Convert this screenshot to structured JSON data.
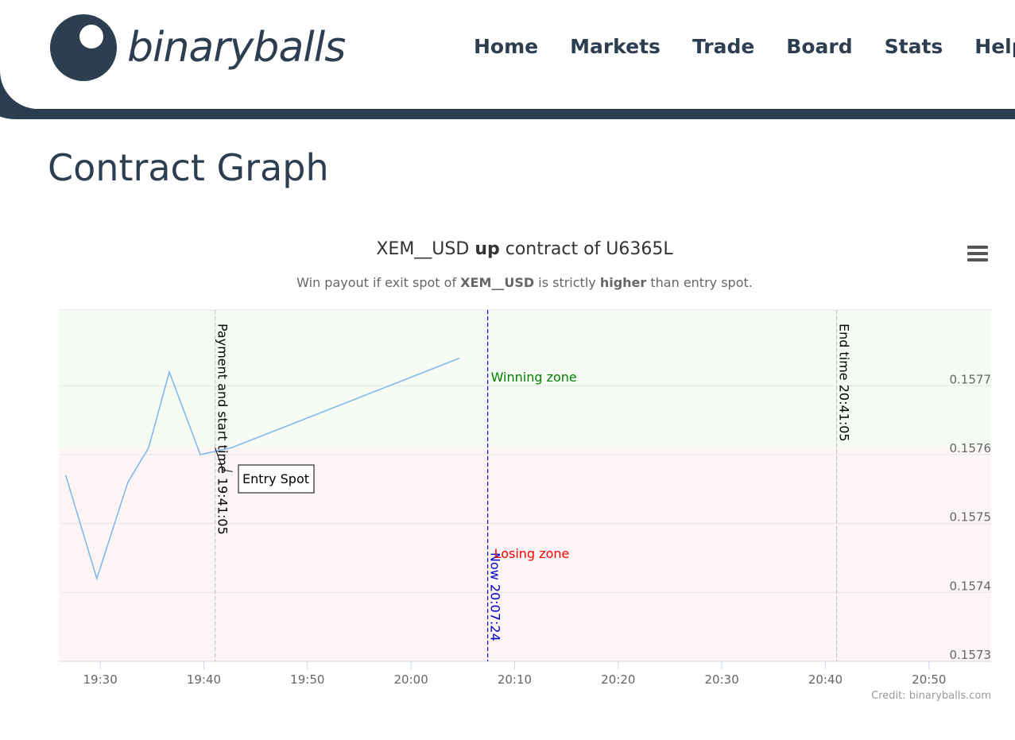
{
  "brand": {
    "name": "binaryballs"
  },
  "nav": {
    "items": [
      "Home",
      "Markets",
      "Trade",
      "Board",
      "Stats",
      "Help"
    ]
  },
  "page": {
    "title": "Contract Graph"
  },
  "chart_data": {
    "type": "line",
    "title": {
      "symbol": "XEM__USD",
      "direction": "up",
      "rest": " contract of U6365L"
    },
    "subtitle": {
      "prefix": "Win payout if exit spot of ",
      "symbol": "XEM__USD",
      "middle": " is strictly ",
      "emph": "higher",
      "suffix": " than entry spot."
    },
    "x_ticks": [
      "19:30",
      "19:40",
      "19:50",
      "20:00",
      "20:10",
      "20:20",
      "20:30",
      "20:40",
      "20:50"
    ],
    "y_ticks": [
      "0.1573",
      "0.1574",
      "0.1575",
      "0.1576",
      "0.1577"
    ],
    "xlim": [
      "19:26",
      "20:56"
    ],
    "ylim": [
      0.1573,
      0.15781
    ],
    "series": [
      {
        "x": [
          "19:26:40",
          "19:29:40",
          "19:32:40",
          "19:34:40",
          "19:36:40",
          "19:39:40",
          "19:42:40",
          "20:04:40"
        ],
        "y": [
          0.15757,
          0.15742,
          0.15756,
          0.15761,
          0.15772,
          0.1576,
          0.15761,
          0.15774
        ]
      }
    ],
    "entry_spot": {
      "x": "19:41:05",
      "y": 0.15761,
      "label": "Entry Spot"
    },
    "zones": {
      "winning": "Winning zone",
      "losing": "Losing zone"
    },
    "plot_lines": [
      {
        "x": "19:41:05",
        "label": "Payment and start time 19:41:05"
      },
      {
        "x": "20:07:24",
        "label": "Now 20:07:24"
      },
      {
        "x": "20:41:05",
        "label": "End time 20:41:05"
      }
    ],
    "colors": {
      "line": "#7cb5ec",
      "win_bg": "#f6fcf4",
      "lose_bg": "#fdf5f5",
      "win_text": "#008000",
      "lose_text": "#ff0000",
      "now_line": "#0000cc"
    },
    "credit": "Credit: binaryballs.com"
  }
}
